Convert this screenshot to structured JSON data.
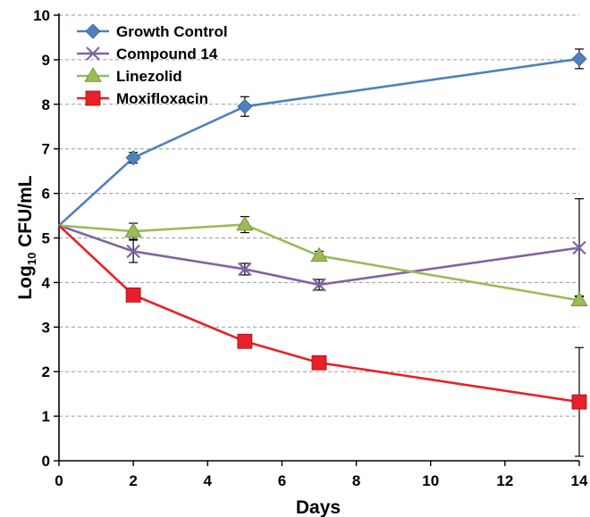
{
  "chart_data": {
    "type": "line",
    "xlabel": "Days",
    "ylabel": {
      "main": "Log",
      "sub": "10",
      "rest": " CFU/mL"
    },
    "xlim": [
      0,
      14
    ],
    "ylim": [
      0,
      10
    ],
    "xticks": [
      "0",
      "2",
      "4",
      "6",
      "8",
      "10",
      "12",
      "14"
    ],
    "yticks": [
      "0",
      "1",
      "2",
      "3",
      "4",
      "5",
      "6",
      "7",
      "8",
      "9",
      "10"
    ],
    "grid": "horizontal dashed",
    "legend_position": "top-left",
    "series": [
      {
        "name": "Growth Control",
        "color": "#4F81BD",
        "marker": "diamond",
        "x": [
          0,
          2,
          5,
          14
        ],
        "y": [
          5.28,
          6.8,
          7.95,
          9.02
        ],
        "err": [
          0,
          0.12,
          0.22,
          0.22
        ]
      },
      {
        "name": "Compound 14",
        "color": "#8064A2",
        "marker": "x",
        "x": [
          0,
          2,
          5,
          7,
          14
        ],
        "y": [
          5.28,
          4.7,
          4.3,
          3.95,
          4.78
        ],
        "err": [
          0,
          0.25,
          0.13,
          0.12,
          1.1
        ]
      },
      {
        "name": "Linezolid",
        "color": "#9BBB59",
        "marker": "triangle",
        "x": [
          0,
          2,
          5,
          7,
          14
        ],
        "y": [
          5.28,
          5.15,
          5.3,
          4.6,
          3.6
        ],
        "err": [
          0,
          0.18,
          0.18,
          0.1,
          0.1
        ]
      },
      {
        "name": "Moxifloxacin",
        "color": "#E8202A",
        "marker": "square",
        "x": [
          0,
          2,
          5,
          7,
          14
        ],
        "y": [
          5.28,
          3.72,
          2.68,
          2.2,
          1.32
        ],
        "err": [
          0,
          0.15,
          0.13,
          0.12,
          1.22
        ]
      }
    ]
  }
}
